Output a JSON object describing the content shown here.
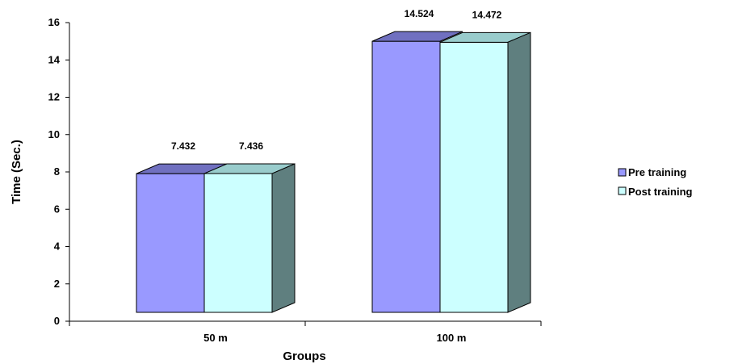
{
  "chart_data": {
    "type": "bar",
    "categories": [
      "50 m",
      "100 m"
    ],
    "series": [
      {
        "name": "Pre training",
        "values": [
          7.432,
          14.524
        ],
        "labels": [
          "7.432",
          "14.524"
        ],
        "color": "#9999ff"
      },
      {
        "name": "Post training",
        "values": [
          7.436,
          14.472
        ],
        "labels": [
          "7.436",
          "14.472"
        ],
        "color": "#ccffff"
      }
    ],
    "xlabel": "Groups",
    "ylabel": "Time (Sec.)",
    "ylim": [
      0,
      16
    ],
    "yticks": [
      0,
      2,
      4,
      6,
      8,
      10,
      12,
      14,
      16
    ],
    "ytick_labels": [
      "0",
      "2",
      "4",
      "6",
      "8",
      "10",
      "12",
      "14",
      "16"
    ],
    "grid": false,
    "legend_position": "right",
    "style": "3d-column",
    "side_color": "#5f7f7f",
    "pre_top_color": "#7070c0",
    "post_top_color": "#99cccc"
  }
}
